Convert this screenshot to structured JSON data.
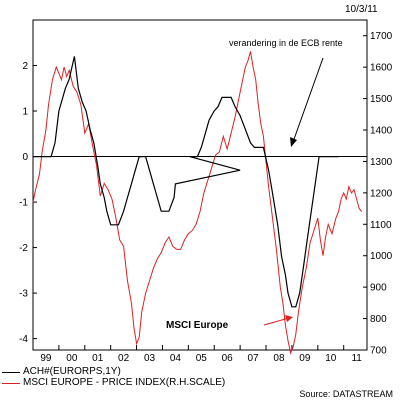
{
  "date_label": "10/3/11",
  "source": "Source: DATASTREAM",
  "colors": {
    "achterberg": "#000000",
    "msci": "#e02020"
  },
  "chart_data": {
    "type": "line",
    "left_axis": {
      "ticks": [
        2,
        1,
        0,
        -1,
        -2,
        -3,
        -4
      ],
      "labels": [
        "2",
        "1",
        "0",
        "-1",
        "-2",
        "-3",
        "-4"
      ],
      "ylim": [
        -4.25,
        3
      ]
    },
    "right_axis": {
      "ticks": [
        1700,
        1600,
        1500,
        1400,
        1300,
        1200,
        1100,
        1000,
        900,
        800,
        700
      ],
      "labels": [
        "1700",
        "1600",
        "1500",
        "1400",
        "1300",
        "1200",
        "1100",
        "1000",
        "900",
        "800",
        "700"
      ],
      "ylim": [
        700,
        1750
      ]
    },
    "x_axis": {
      "categories": [
        "99",
        "00",
        "01",
        "02",
        "03",
        "04",
        "05",
        "06",
        "07",
        "08",
        "09",
        "10",
        "11"
      ],
      "xlim": [
        1999.0,
        2011.9
      ]
    },
    "zero_line": 0,
    "series": [
      {
        "name": "ACH#(EURORPS,1Y)",
        "axis": "left",
        "color": "#000000",
        "x": [
          1999.0,
          1999.7,
          1999.85,
          2000.0,
          2000.25,
          2000.4,
          2000.6,
          2000.75,
          2000.9,
          2001.05,
          2001.2,
          2001.35,
          2001.5,
          2001.6,
          2001.75,
          2001.85,
          2002.0,
          2002.1,
          2002.3,
          2002.5,
          2002.65,
          2002.8,
          2002.95,
          2003.1,
          2003.2,
          2003.35,
          2003.5,
          2003.65,
          2003.8,
          2003.95,
          2004.1,
          2004.25,
          2004.45,
          2004.5,
          2007.0,
          2005.05,
          2005.2,
          2005.35,
          2005.5,
          2005.65,
          2005.8,
          2006.0,
          2006.15,
          2006.3,
          2006.5,
          2006.65,
          2006.8,
          2007.0,
          2007.2,
          2007.4,
          2007.55,
          2007.75,
          2007.9,
          2008.1,
          2008.25,
          2008.45,
          2008.6,
          2008.75,
          2008.85,
          2009.0,
          2009.15,
          2009.3,
          2009.45,
          2009.6,
          2009.75,
          2009.9,
          2010.05,
          2010.2,
          2010.35,
          2010.5,
          2010.7,
          2010.8
        ],
        "values": [
          0,
          0,
          0.3,
          1.0,
          1.5,
          1.7,
          2.2,
          1.5,
          1.2,
          1.0,
          0.6,
          0.3,
          -0.2,
          -0.6,
          -0.9,
          -1.2,
          -1.5,
          -1.5,
          -1.5,
          -1.2,
          -0.9,
          -0.6,
          -0.3,
          0,
          0,
          0,
          -0.3,
          -0.6,
          -0.9,
          -1.2,
          -1.2,
          -1.2,
          -0.9,
          -0.6,
          -0.3,
          0,
          0,
          0,
          0.2,
          0.5,
          0.8,
          1.0,
          1.1,
          1.3,
          1.3,
          1.3,
          1.1,
          0.9,
          0.6,
          0.3,
          0.2,
          0.2,
          0.2,
          -0.3,
          -0.8,
          -1.5,
          -2.2,
          -2.6,
          -3.0,
          -3.3,
          -3.3,
          -3.0,
          -2.4,
          -1.8,
          -1.2,
          -0.6,
          0,
          0,
          0,
          0,
          0,
          0
        ]
      },
      {
        "name": "MSCI EUROPE - PRICE INDEX(R.H.SCALE)",
        "axis": "right",
        "color": "#e02020",
        "x": [
          1999.0,
          1999.1,
          1999.25,
          1999.35,
          1999.5,
          1999.6,
          1999.75,
          1999.9,
          2000.0,
          2000.1,
          2000.2,
          2000.3,
          2000.4,
          2000.55,
          2000.7,
          2000.85,
          2001.0,
          2001.15,
          2001.3,
          2001.45,
          2001.6,
          2001.75,
          2001.9,
          2002.05,
          2002.2,
          2002.35,
          2002.5,
          2002.65,
          2002.8,
          2002.9,
          2003.0,
          2003.1,
          2003.2,
          2003.35,
          2003.5,
          2003.65,
          2003.8,
          2003.95,
          2004.1,
          2004.25,
          2004.4,
          2004.55,
          2004.7,
          2004.85,
          2005.0,
          2005.15,
          2005.3,
          2005.45,
          2005.6,
          2005.75,
          2005.9,
          2006.05,
          2006.2,
          2006.35,
          2006.5,
          2006.65,
          2006.8,
          2006.95,
          2007.1,
          2007.2,
          2007.3,
          2007.4,
          2007.5,
          2007.6,
          2007.7,
          2007.8,
          2007.9,
          2008.0,
          2008.1,
          2008.25,
          2008.4,
          2008.55,
          2008.65,
          2008.75,
          2008.85,
          2008.95,
          2009.05,
          2009.15,
          2009.25,
          2009.4,
          2009.55,
          2009.7,
          2009.85,
          2010.0,
          2010.1,
          2010.2,
          2010.3,
          2010.4,
          2010.55,
          2010.7,
          2010.8,
          2010.9,
          2011.0,
          2011.1,
          2011.2,
          2011.3,
          2011.4,
          2011.5,
          2011.6,
          2011.7
        ],
        "values": [
          1170,
          1210,
          1260,
          1330,
          1400,
          1480,
          1560,
          1600,
          1580,
          1560,
          1600,
          1570,
          1590,
          1540,
          1520,
          1480,
          1390,
          1420,
          1350,
          1290,
          1190,
          1230,
          1210,
          1180,
          1120,
          1050,
          1030,
          920,
          850,
          770,
          720,
          740,
          820,
          880,
          920,
          960,
          990,
          1010,
          1040,
          1060,
          1030,
          1020,
          1020,
          1050,
          1070,
          1080,
          1100,
          1140,
          1200,
          1240,
          1280,
          1320,
          1330,
          1380,
          1340,
          1390,
          1440,
          1500,
          1560,
          1600,
          1620,
          1650,
          1600,
          1560,
          1480,
          1420,
          1380,
          1300,
          1220,
          1120,
          1020,
          900,
          850,
          780,
          730,
          690,
          710,
          750,
          820,
          900,
          960,
          1040,
          1080,
          1120,
          1050,
          1000,
          1060,
          1100,
          1070,
          1120,
          1140,
          1180,
          1200,
          1180,
          1220,
          1200,
          1210,
          1180,
          1150,
          1140
        ]
      }
    ],
    "annotations": [
      {
        "text": "verandering in de ECB rente",
        "x": 2008.6,
        "y": 1.5
      },
      {
        "text": "MSCI Europe",
        "x": 2004.0,
        "y": -3.6
      }
    ]
  }
}
